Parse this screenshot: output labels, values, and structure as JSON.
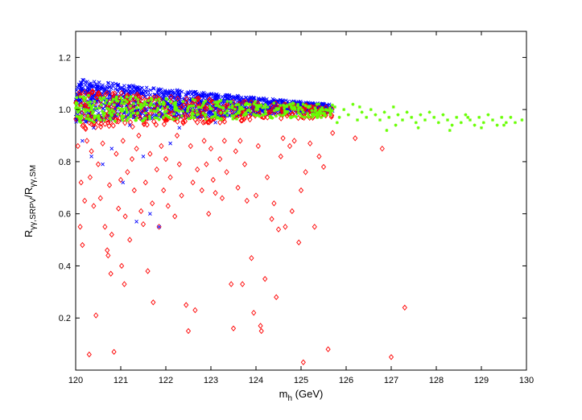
{
  "chart_data": {
    "type": "scatter",
    "xlabel": {
      "main": "m",
      "sub": "h",
      "rest": " (GeV)"
    },
    "ylabel": {
      "r1": "R",
      "s1": "γγ,SRPV",
      "sep": "/",
      "r2": "R",
      "s2": "γγ,SM"
    },
    "xlim": [
      120,
      130
    ],
    "ylim": [
      0,
      1.3
    ],
    "xticks": [
      "120",
      "121",
      "122",
      "123",
      "124",
      "125",
      "126",
      "127",
      "128",
      "129",
      "130"
    ],
    "yticks": [
      "0.2",
      "0.4",
      "0.6",
      "0.8",
      "1.0",
      "1.2"
    ],
    "ytick_values": [
      0.2,
      0.4,
      0.6,
      0.8,
      1.0,
      1.2
    ],
    "grid": false,
    "series": [
      {
        "marker": "diamond",
        "color": "#ff0000",
        "points": [
          [
            120.05,
            0.86
          ],
          [
            120.1,
            0.55
          ],
          [
            120.12,
            0.72
          ],
          [
            120.15,
            0.48
          ],
          [
            120.2,
            0.65
          ],
          [
            120.25,
            0.88
          ],
          [
            120.3,
            0.06
          ],
          [
            120.32,
            0.74
          ],
          [
            120.35,
            0.84
          ],
          [
            120.4,
            0.63
          ],
          [
            120.45,
            0.21
          ],
          [
            120.5,
            0.79
          ],
          [
            120.55,
            0.66
          ],
          [
            120.6,
            0.87
          ],
          [
            120.65,
            0.55
          ],
          [
            120.7,
            0.46
          ],
          [
            120.72,
            0.44
          ],
          [
            120.75,
            0.71
          ],
          [
            120.78,
            0.37
          ],
          [
            120.8,
            0.52
          ],
          [
            120.85,
            0.07
          ],
          [
            120.9,
            0.83
          ],
          [
            120.95,
            0.62
          ],
          [
            121.0,
            0.73
          ],
          [
            121.02,
            0.4
          ],
          [
            121.05,
            0.88
          ],
          [
            121.08,
            0.33
          ],
          [
            121.1,
            0.59
          ],
          [
            121.15,
            0.76
          ],
          [
            121.2,
            0.5
          ],
          [
            121.25,
            0.81
          ],
          [
            121.3,
            0.69
          ],
          [
            121.35,
            0.85
          ],
          [
            121.4,
            0.9
          ],
          [
            121.45,
            0.61
          ],
          [
            121.5,
            0.56
          ],
          [
            121.55,
            0.72
          ],
          [
            121.6,
            0.38
          ],
          [
            121.65,
            0.83
          ],
          [
            121.7,
            0.64
          ],
          [
            121.72,
            0.26
          ],
          [
            121.8,
            0.77
          ],
          [
            121.85,
            0.55
          ],
          [
            121.9,
            0.86
          ],
          [
            121.95,
            0.69
          ],
          [
            122.0,
            0.81
          ],
          [
            122.05,
            0.63
          ],
          [
            122.1,
            0.74
          ],
          [
            122.2,
            0.59
          ],
          [
            122.25,
            0.9
          ],
          [
            122.3,
            0.79
          ],
          [
            122.35,
            0.67
          ],
          [
            122.45,
            0.25
          ],
          [
            122.5,
            0.15
          ],
          [
            122.55,
            0.86
          ],
          [
            122.6,
            0.72
          ],
          [
            122.65,
            0.23
          ],
          [
            122.7,
            0.77
          ],
          [
            122.8,
            0.69
          ],
          [
            122.85,
            0.88
          ],
          [
            122.9,
            0.79
          ],
          [
            122.95,
            0.6
          ],
          [
            123.0,
            0.85
          ],
          [
            123.05,
            0.73
          ],
          [
            123.1,
            0.68
          ],
          [
            123.2,
            0.81
          ],
          [
            123.25,
            0.66
          ],
          [
            123.3,
            0.88
          ],
          [
            123.35,
            0.76
          ],
          [
            123.45,
            0.33
          ],
          [
            123.5,
            0.16
          ],
          [
            123.55,
            0.84
          ],
          [
            123.6,
            0.7
          ],
          [
            123.65,
            0.88
          ],
          [
            123.7,
            0.33
          ],
          [
            123.75,
            0.79
          ],
          [
            123.8,
            0.65
          ],
          [
            123.9,
            0.43
          ],
          [
            123.95,
            0.22
          ],
          [
            124.0,
            0.67
          ],
          [
            124.05,
            0.86
          ],
          [
            124.1,
            0.17
          ],
          [
            124.12,
            0.15
          ],
          [
            124.2,
            0.35
          ],
          [
            124.25,
            0.74
          ],
          [
            124.35,
            0.58
          ],
          [
            124.4,
            0.64
          ],
          [
            124.45,
            0.28
          ],
          [
            124.5,
            0.54
          ],
          [
            124.55,
            0.82
          ],
          [
            124.6,
            0.89
          ],
          [
            124.65,
            0.55
          ],
          [
            124.75,
            0.86
          ],
          [
            124.8,
            0.61
          ],
          [
            124.85,
            0.88
          ],
          [
            124.95,
            0.49
          ],
          [
            125.0,
            0.69
          ],
          [
            125.05,
            0.03
          ],
          [
            125.1,
            0.76
          ],
          [
            125.2,
            0.87
          ],
          [
            125.3,
            0.55
          ],
          [
            125.4,
            0.82
          ],
          [
            125.5,
            0.78
          ],
          [
            125.6,
            0.08
          ],
          [
            125.7,
            0.91
          ],
          [
            126.2,
            0.89
          ],
          [
            126.8,
            0.85
          ],
          [
            127.0,
            0.05
          ],
          [
            127.3,
            0.24
          ]
        ]
      },
      {
        "marker": "x",
        "color": "#0000ff",
        "points": [
          [
            120.15,
            0.88
          ],
          [
            120.35,
            0.82
          ],
          [
            120.6,
            0.79
          ],
          [
            120.8,
            0.85
          ],
          [
            121.05,
            0.72
          ],
          [
            121.35,
            0.57
          ],
          [
            121.5,
            0.82
          ],
          [
            121.65,
            0.6
          ],
          [
            121.85,
            0.55
          ],
          [
            122.1,
            0.87
          ],
          [
            120.4,
            0.93
          ],
          [
            121.2,
            0.94
          ],
          [
            122.3,
            0.93
          ],
          [
            123.1,
            0.95
          ]
        ]
      },
      {
        "marker": "star",
        "color": "#66ff00",
        "points": [
          [
            125.05,
            0.99
          ],
          [
            125.15,
            1.01
          ],
          [
            125.25,
            0.98
          ],
          [
            125.35,
            1.02
          ],
          [
            125.45,
            0.97
          ],
          [
            125.55,
            1.0
          ],
          [
            125.65,
            0.99
          ],
          [
            125.75,
            1.01
          ],
          [
            125.85,
            0.97
          ],
          [
            125.95,
            1.0
          ],
          [
            126.05,
            0.98
          ],
          [
            126.15,
            1.02
          ],
          [
            126.25,
            0.96
          ],
          [
            126.35,
            0.99
          ],
          [
            126.45,
            0.97
          ],
          [
            126.55,
            1.0
          ],
          [
            126.65,
            0.98
          ],
          [
            126.75,
            0.96
          ],
          [
            126.85,
            0.99
          ],
          [
            126.95,
            0.97
          ],
          [
            127.05,
            1.01
          ],
          [
            127.15,
            0.98
          ],
          [
            127.25,
            0.96
          ],
          [
            127.35,
            0.99
          ],
          [
            127.45,
            0.97
          ],
          [
            127.55,
            0.95
          ],
          [
            127.65,
            0.98
          ],
          [
            127.75,
            0.96
          ],
          [
            127.85,
            0.99
          ],
          [
            127.95,
            0.97
          ],
          [
            128.05,
            0.95
          ],
          [
            128.15,
            0.98
          ],
          [
            128.25,
            0.96
          ],
          [
            128.35,
            0.94
          ],
          [
            128.45,
            0.97
          ],
          [
            128.55,
            0.95
          ],
          [
            128.65,
            0.98
          ],
          [
            128.75,
            0.96
          ],
          [
            128.85,
            0.94
          ],
          [
            128.95,
            0.97
          ],
          [
            129.05,
            0.95
          ],
          [
            129.15,
            0.98
          ],
          [
            129.25,
            0.96
          ],
          [
            129.35,
            0.94
          ],
          [
            129.45,
            0.97
          ],
          [
            129.55,
            0.95
          ],
          [
            129.65,
            0.97
          ],
          [
            129.75,
            0.95
          ],
          [
            129.9,
            0.96
          ],
          [
            126.9,
            0.92
          ],
          [
            127.6,
            0.93
          ],
          [
            128.3,
            0.92
          ],
          [
            129.0,
            0.93
          ],
          [
            129.5,
            0.94
          ],
          [
            126.3,
            1.01
          ],
          [
            127.1,
            0.94
          ],
          [
            128.7,
            0.97
          ],
          [
            125.8,
            0.95
          ]
        ]
      }
    ],
    "dense_band": {
      "x_range": [
        120,
        125.7
      ],
      "blue_y_top": [
        1.12,
        1.02
      ],
      "blue_y_bottom": [
        0.95,
        0.99
      ],
      "red_y_top": [
        1.08,
        1.01
      ],
      "red_y_bottom": [
        0.92,
        0.97
      ],
      "green_y_top": [
        1.06,
        1.02
      ],
      "green_y_bottom": [
        0.95,
        0.97
      ]
    }
  }
}
